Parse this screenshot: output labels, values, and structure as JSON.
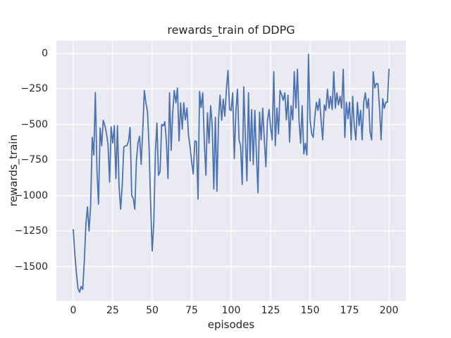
{
  "chart_data": {
    "type": "line",
    "title": "rewards_train of DDPG",
    "xlabel": "episodes",
    "ylabel": "rewards_train",
    "grid": true,
    "legend_position": "none",
    "xticks": [
      0,
      25,
      50,
      75,
      100,
      125,
      150,
      175,
      200
    ],
    "xtick_labels": [
      "0",
      "25",
      "50",
      "75",
      "100",
      "125",
      "150",
      "175",
      "200"
    ],
    "yticks": [
      0,
      -250,
      -500,
      -750,
      -1000,
      -1250,
      -1500
    ],
    "ytick_labels": [
      "0",
      "−250",
      "−500",
      "−750",
      "−1000",
      "−1250",
      "−1500"
    ],
    "xlim": [
      -10.7,
      210.7
    ],
    "ylim": [
      -1741,
      91
    ],
    "x_start": 0,
    "x_step": 1,
    "colors": {
      "line": "#4c72b0",
      "plot_background": "#eaeaf2",
      "grid": "#ffffff",
      "text": "#262626",
      "figure_background": "#ffffff"
    },
    "series": [
      {
        "name": "rewards_train",
        "values": [
          -1240,
          -1410,
          -1550,
          -1655,
          -1680,
          -1640,
          -1660,
          -1460,
          -1200,
          -1080,
          -1250,
          -1070,
          -591,
          -715,
          -275,
          -823,
          -1060,
          -525,
          -649,
          -470,
          -508,
          -560,
          -640,
          -906,
          -517,
          -630,
          -508,
          -880,
          -508,
          -930,
          -1096,
          -935,
          -660,
          -650,
          -650,
          -616,
          -520,
          -1000,
          -1020,
          -1096,
          -750,
          -632,
          -583,
          -781,
          -550,
          -260,
          -347,
          -409,
          -650,
          -1050,
          -1390,
          -1200,
          -700,
          -490,
          -857,
          -831,
          -500,
          -510,
          -480,
          -620,
          -880,
          -277,
          -682,
          -417,
          -260,
          -347,
          -243,
          -616,
          -347,
          -533,
          -347,
          -467,
          -384,
          -575,
          -660,
          -765,
          -848,
          -616,
          -620,
          -1025,
          -268,
          -380,
          -277,
          -616,
          -856,
          -417,
          -632,
          -368,
          -500,
          -955,
          -450,
          -970,
          -467,
          -293,
          -470,
          -322,
          -442,
          -250,
          -120,
          -395,
          -401,
          -277,
          -740,
          -412,
          -252,
          -608,
          -649,
          -922,
          -235,
          -600,
          -897,
          -277,
          -757,
          -395,
          -782,
          -400,
          -700,
          -980,
          -412,
          -608,
          -385,
          -600,
          -798,
          -475,
          -395,
          -517,
          -608,
          -128,
          -649,
          -384,
          -566,
          -260,
          -290,
          -330,
          -277,
          -467,
          -293,
          -624,
          -368,
          -467,
          -128,
          -384,
          -111,
          -467,
          -632,
          -368,
          -707,
          -632,
          -715,
          -5,
          -467,
          -566,
          -591,
          -450,
          -343,
          -400,
          -318,
          -475,
          -608,
          -362,
          -400,
          -252,
          -385,
          -302,
          -395,
          -128,
          -385,
          -277,
          -362,
          -302,
          -385,
          -111,
          -591,
          -343,
          -459,
          -343,
          -608,
          -302,
          -508,
          -608,
          -343,
          -508,
          -400,
          -608,
          -343,
          -277,
          -385,
          -318,
          -550,
          -608,
          -128,
          -243,
          -210,
          -215,
          -385,
          -608,
          -318,
          -385,
          -343,
          -343,
          -111
        ]
      }
    ]
  }
}
